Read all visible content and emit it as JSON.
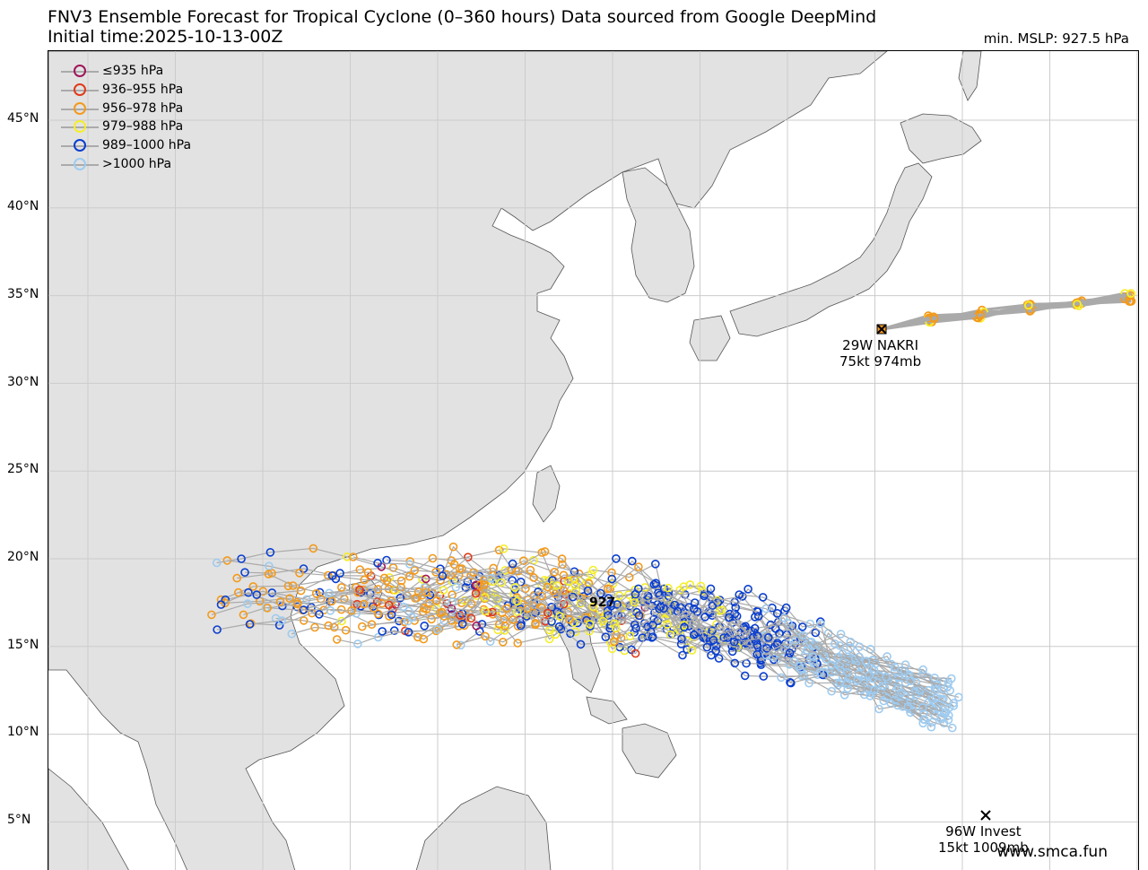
{
  "header": {
    "title": "FNV3 Ensemble Forecast for Tropical Cyclone (0–360 hours) Data sourced from Google DeepMind",
    "initial_time": "Initial time:2025-10-13-00Z",
    "min_mslp": "min. MSLP: 927.5 hPa"
  },
  "map": {
    "lat_labels": [
      "45°N",
      "40°N",
      "35°N",
      "30°N",
      "25°N",
      "20°N",
      "15°N",
      "10°N",
      "5°N"
    ],
    "land_color": "#e2e2e2",
    "ocean_color": "#ffffff",
    "grid": true
  },
  "legend": {
    "items": [
      {
        "label": "≤935 hPa",
        "color": "#a0155a"
      },
      {
        "label": "936–955 hPa",
        "color": "#e03a1c"
      },
      {
        "label": "956–978 hPa",
        "color": "#f39a1c"
      },
      {
        "label": "979–988 hPa",
        "color": "#f5ee2a"
      },
      {
        "label": "989–1000 hPa",
        "color": "#0a3ecf"
      },
      {
        "label": ">1000 hPa",
        "color": "#9ecbf0"
      }
    ]
  },
  "storms": {
    "nakri": {
      "name": "29W NAKRI",
      "info": "75kt 974mb"
    },
    "invest": {
      "name": "96W Invest",
      "info": "15kt 1009mb"
    },
    "peak_label": "927"
  },
  "footer": {
    "watermark": "www.smca.fun"
  }
}
